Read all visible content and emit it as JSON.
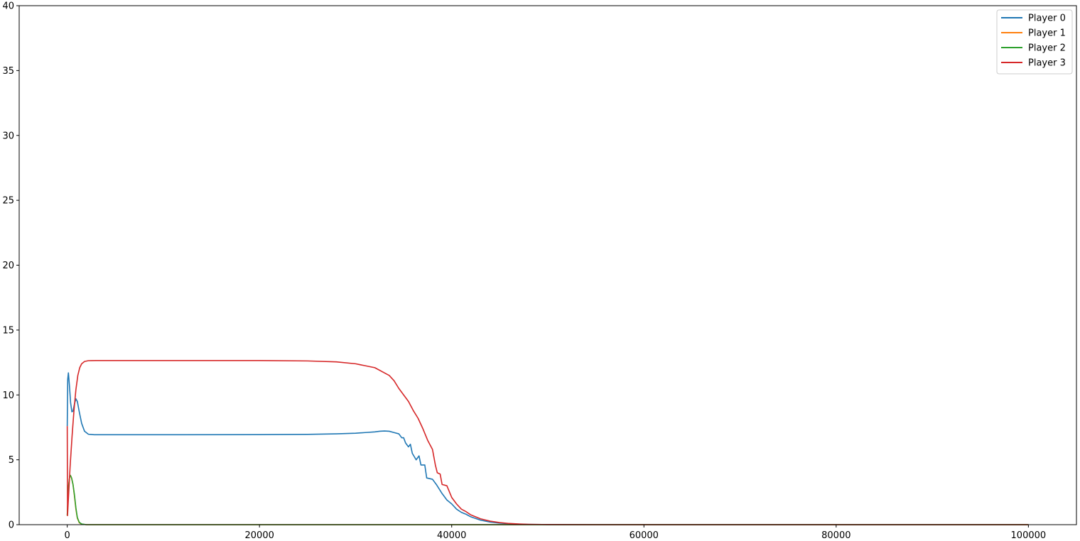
{
  "chart_data": {
    "type": "line",
    "title": "",
    "xlabel": "",
    "ylabel": "",
    "xlim": [
      -5000,
      105000
    ],
    "ylim": [
      0,
      40
    ],
    "x_ticks": [
      0,
      20000,
      40000,
      60000,
      80000,
      100000
    ],
    "x_tick_labels": [
      "0",
      "20000",
      "40000",
      "60000",
      "80000",
      "100000"
    ],
    "y_ticks": [
      0,
      5,
      10,
      15,
      20,
      25,
      30,
      35,
      40
    ],
    "y_tick_labels": [
      "0",
      "5",
      "10",
      "15",
      "20",
      "25",
      "30",
      "35",
      "40"
    ],
    "grid": false,
    "legend_position": "top-right",
    "series": [
      {
        "name": "Player 0",
        "color": "#1f77b4",
        "points": [
          [
            0,
            7.6
          ],
          [
            50,
            11.2
          ],
          [
            120,
            11.7
          ],
          [
            220,
            10.8
          ],
          [
            350,
            9.4
          ],
          [
            480,
            8.7
          ],
          [
            600,
            8.75
          ],
          [
            750,
            9.3
          ],
          [
            900,
            9.7
          ],
          [
            1050,
            9.5
          ],
          [
            1250,
            8.7
          ],
          [
            1500,
            7.8
          ],
          [
            1800,
            7.2
          ],
          [
            2200,
            6.97
          ],
          [
            2800,
            6.93
          ],
          [
            10000,
            6.93
          ],
          [
            20000,
            6.94
          ],
          [
            25000,
            6.96
          ],
          [
            28000,
            7.0
          ],
          [
            30000,
            7.05
          ],
          [
            31000,
            7.1
          ],
          [
            32000,
            7.15
          ],
          [
            32500,
            7.2
          ],
          [
            33000,
            7.22
          ],
          [
            33500,
            7.2
          ],
          [
            34000,
            7.1
          ],
          [
            34500,
            7.0
          ],
          [
            34800,
            6.7
          ],
          [
            35000,
            6.7
          ],
          [
            35200,
            6.3
          ],
          [
            35500,
            6.0
          ],
          [
            35700,
            6.2
          ],
          [
            35900,
            5.5
          ],
          [
            36300,
            5.0
          ],
          [
            36600,
            5.3
          ],
          [
            36800,
            4.6
          ],
          [
            37200,
            4.6
          ],
          [
            37400,
            3.6
          ],
          [
            38000,
            3.5
          ],
          [
            38400,
            3.1
          ],
          [
            39000,
            2.4
          ],
          [
            39500,
            1.9
          ],
          [
            40000,
            1.6
          ],
          [
            40500,
            1.2
          ],
          [
            41000,
            0.95
          ],
          [
            41500,
            0.8
          ],
          [
            42000,
            0.6
          ],
          [
            43000,
            0.35
          ],
          [
            44000,
            0.2
          ],
          [
            45000,
            0.12
          ],
          [
            46000,
            0.07
          ],
          [
            47000,
            0.04
          ],
          [
            48000,
            0.02
          ],
          [
            50000,
            0.005
          ],
          [
            55000,
            0.0
          ],
          [
            100000,
            0.0
          ]
        ]
      },
      {
        "name": "Player 1",
        "color": "#ff7f0e",
        "points": [
          [
            0,
            0.7
          ],
          [
            60,
            1.8
          ],
          [
            140,
            3.0
          ],
          [
            250,
            3.7
          ],
          [
            330,
            3.8
          ],
          [
            450,
            3.6
          ],
          [
            600,
            3.1
          ],
          [
            750,
            2.2
          ],
          [
            900,
            1.2
          ],
          [
            1050,
            0.5
          ],
          [
            1250,
            0.15
          ],
          [
            1500,
            0.04
          ],
          [
            2000,
            0.0
          ],
          [
            100000,
            0.0
          ]
        ]
      },
      {
        "name": "Player 2",
        "color": "#2ca02c",
        "points": [
          [
            0,
            0.7
          ],
          [
            60,
            1.8
          ],
          [
            140,
            3.0
          ],
          [
            250,
            3.7
          ],
          [
            330,
            3.8
          ],
          [
            450,
            3.6
          ],
          [
            600,
            3.1
          ],
          [
            750,
            2.3
          ],
          [
            900,
            1.3
          ],
          [
            1050,
            0.55
          ],
          [
            1250,
            0.18
          ],
          [
            1500,
            0.05
          ],
          [
            2000,
            0.0
          ],
          [
            100000,
            0.0
          ]
        ]
      },
      {
        "name": "Player 3",
        "color": "#d62728",
        "points": [
          [
            0,
            7.6
          ],
          [
            30,
            0.7
          ],
          [
            120,
            2.0
          ],
          [
            300,
            4.5
          ],
          [
            500,
            6.8
          ],
          [
            700,
            8.8
          ],
          [
            900,
            10.4
          ],
          [
            1100,
            11.5
          ],
          [
            1300,
            12.1
          ],
          [
            1500,
            12.4
          ],
          [
            1800,
            12.58
          ],
          [
            2200,
            12.64
          ],
          [
            3000,
            12.65
          ],
          [
            10000,
            12.65
          ],
          [
            20000,
            12.65
          ],
          [
            25000,
            12.62
          ],
          [
            28000,
            12.55
          ],
          [
            30000,
            12.4
          ],
          [
            31000,
            12.25
          ],
          [
            32000,
            12.1
          ],
          [
            33000,
            11.7
          ],
          [
            33500,
            11.5
          ],
          [
            34000,
            11.1
          ],
          [
            34500,
            10.5
          ],
          [
            35000,
            10.0
          ],
          [
            35500,
            9.5
          ],
          [
            36000,
            8.8
          ],
          [
            36500,
            8.2
          ],
          [
            37000,
            7.4
          ],
          [
            37500,
            6.5
          ],
          [
            38000,
            5.8
          ],
          [
            38300,
            4.6
          ],
          [
            38500,
            4.0
          ],
          [
            38800,
            3.9
          ],
          [
            39000,
            3.1
          ],
          [
            39500,
            3.0
          ],
          [
            40000,
            2.1
          ],
          [
            40500,
            1.6
          ],
          [
            41000,
            1.2
          ],
          [
            41500,
            1.0
          ],
          [
            42000,
            0.75
          ],
          [
            43000,
            0.45
          ],
          [
            44000,
            0.27
          ],
          [
            45000,
            0.16
          ],
          [
            46000,
            0.09
          ],
          [
            47000,
            0.05
          ],
          [
            48000,
            0.025
          ],
          [
            50000,
            0.008
          ],
          [
            55000,
            0.0
          ],
          [
            100000,
            0.0
          ]
        ]
      }
    ]
  }
}
